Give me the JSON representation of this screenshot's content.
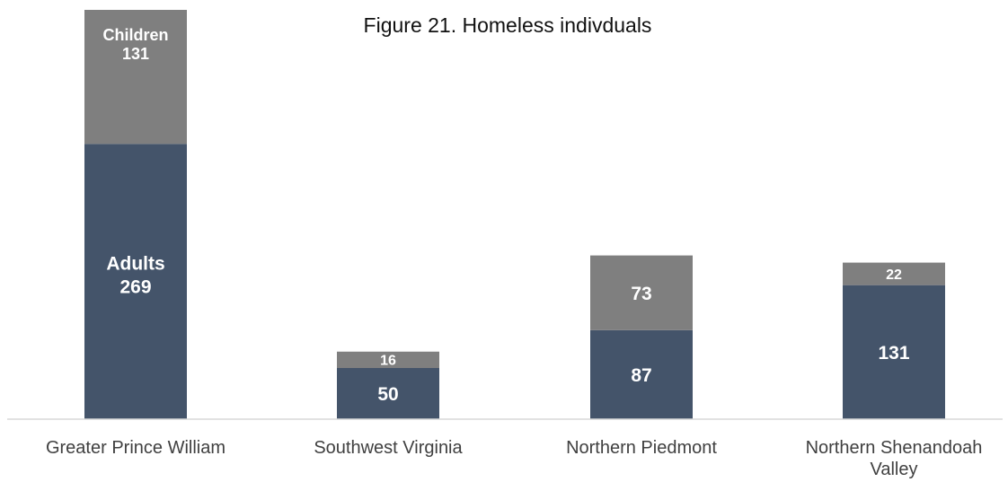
{
  "chart_data": {
    "type": "bar",
    "stacked": true,
    "title": "Figure 21. Homeless indivduals",
    "categories": [
      [
        "Greater Prince William"
      ],
      [
        "Southwest Virginia"
      ],
      [
        "Northern Piedmont"
      ],
      [
        "Northern Shenandoah",
        "Valley"
      ]
    ],
    "series": [
      {
        "name": "Adults",
        "color": "#44546a",
        "values": [
          269,
          50,
          87,
          131
        ]
      },
      {
        "name": "Children",
        "color": "#7f7f7f",
        "values": [
          131,
          16,
          73,
          22
        ]
      }
    ],
    "series_name_shown_on_category": 0,
    "ylim": [
      0,
      400
    ],
    "grid": false,
    "legend": "none"
  }
}
